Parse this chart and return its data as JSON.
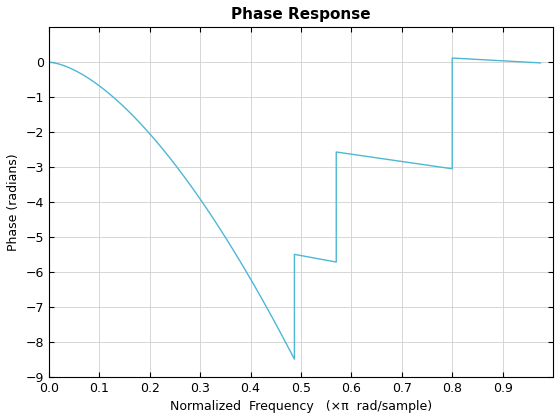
{
  "title": "Phase Response",
  "xlabel": "Normalized  Frequency   (×π  rad/sample)",
  "ylabel": "Phase (radians)",
  "line_color": "#4db8d4",
  "line_width": 1.0,
  "xlim": [
    0,
    1.0
  ],
  "ylim": [
    -9,
    1
  ],
  "xticks": [
    0,
    0.1,
    0.2,
    0.3,
    0.4,
    0.5,
    0.6,
    0.7,
    0.8,
    0.9
  ],
  "yticks": [
    0,
    -1,
    -2,
    -3,
    -4,
    -5,
    -6,
    -7,
    -8,
    -9
  ],
  "grid": true,
  "background_color": "#ffffff",
  "title_fontsize": 11,
  "label_fontsize": 9
}
